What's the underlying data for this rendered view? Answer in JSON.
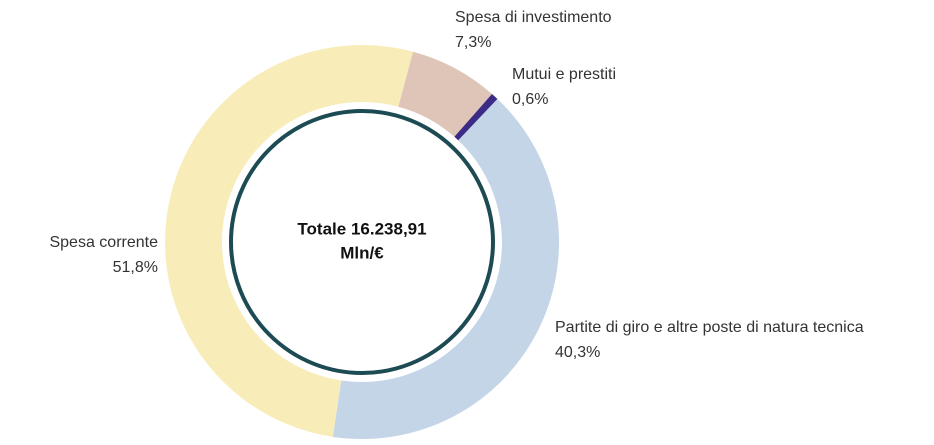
{
  "chart_data": {
    "type": "pie",
    "categories": [
      "Spesa di investimento",
      "Mutui e prestiti",
      "Partite di giro e altre poste di natura tecnica",
      "Spesa corrente"
    ],
    "values": [
      7.3,
      0.6,
      40.3,
      51.8
    ],
    "value_labels": [
      "7,3%",
      "0,6%",
      "40,3%",
      "51,8%"
    ],
    "colors": [
      "#dfc4b8",
      "#3b2b86",
      "#c3d5e7",
      "#f8edb9"
    ],
    "center_text": [
      "Totale 16.238,91",
      "Mln/€"
    ]
  }
}
